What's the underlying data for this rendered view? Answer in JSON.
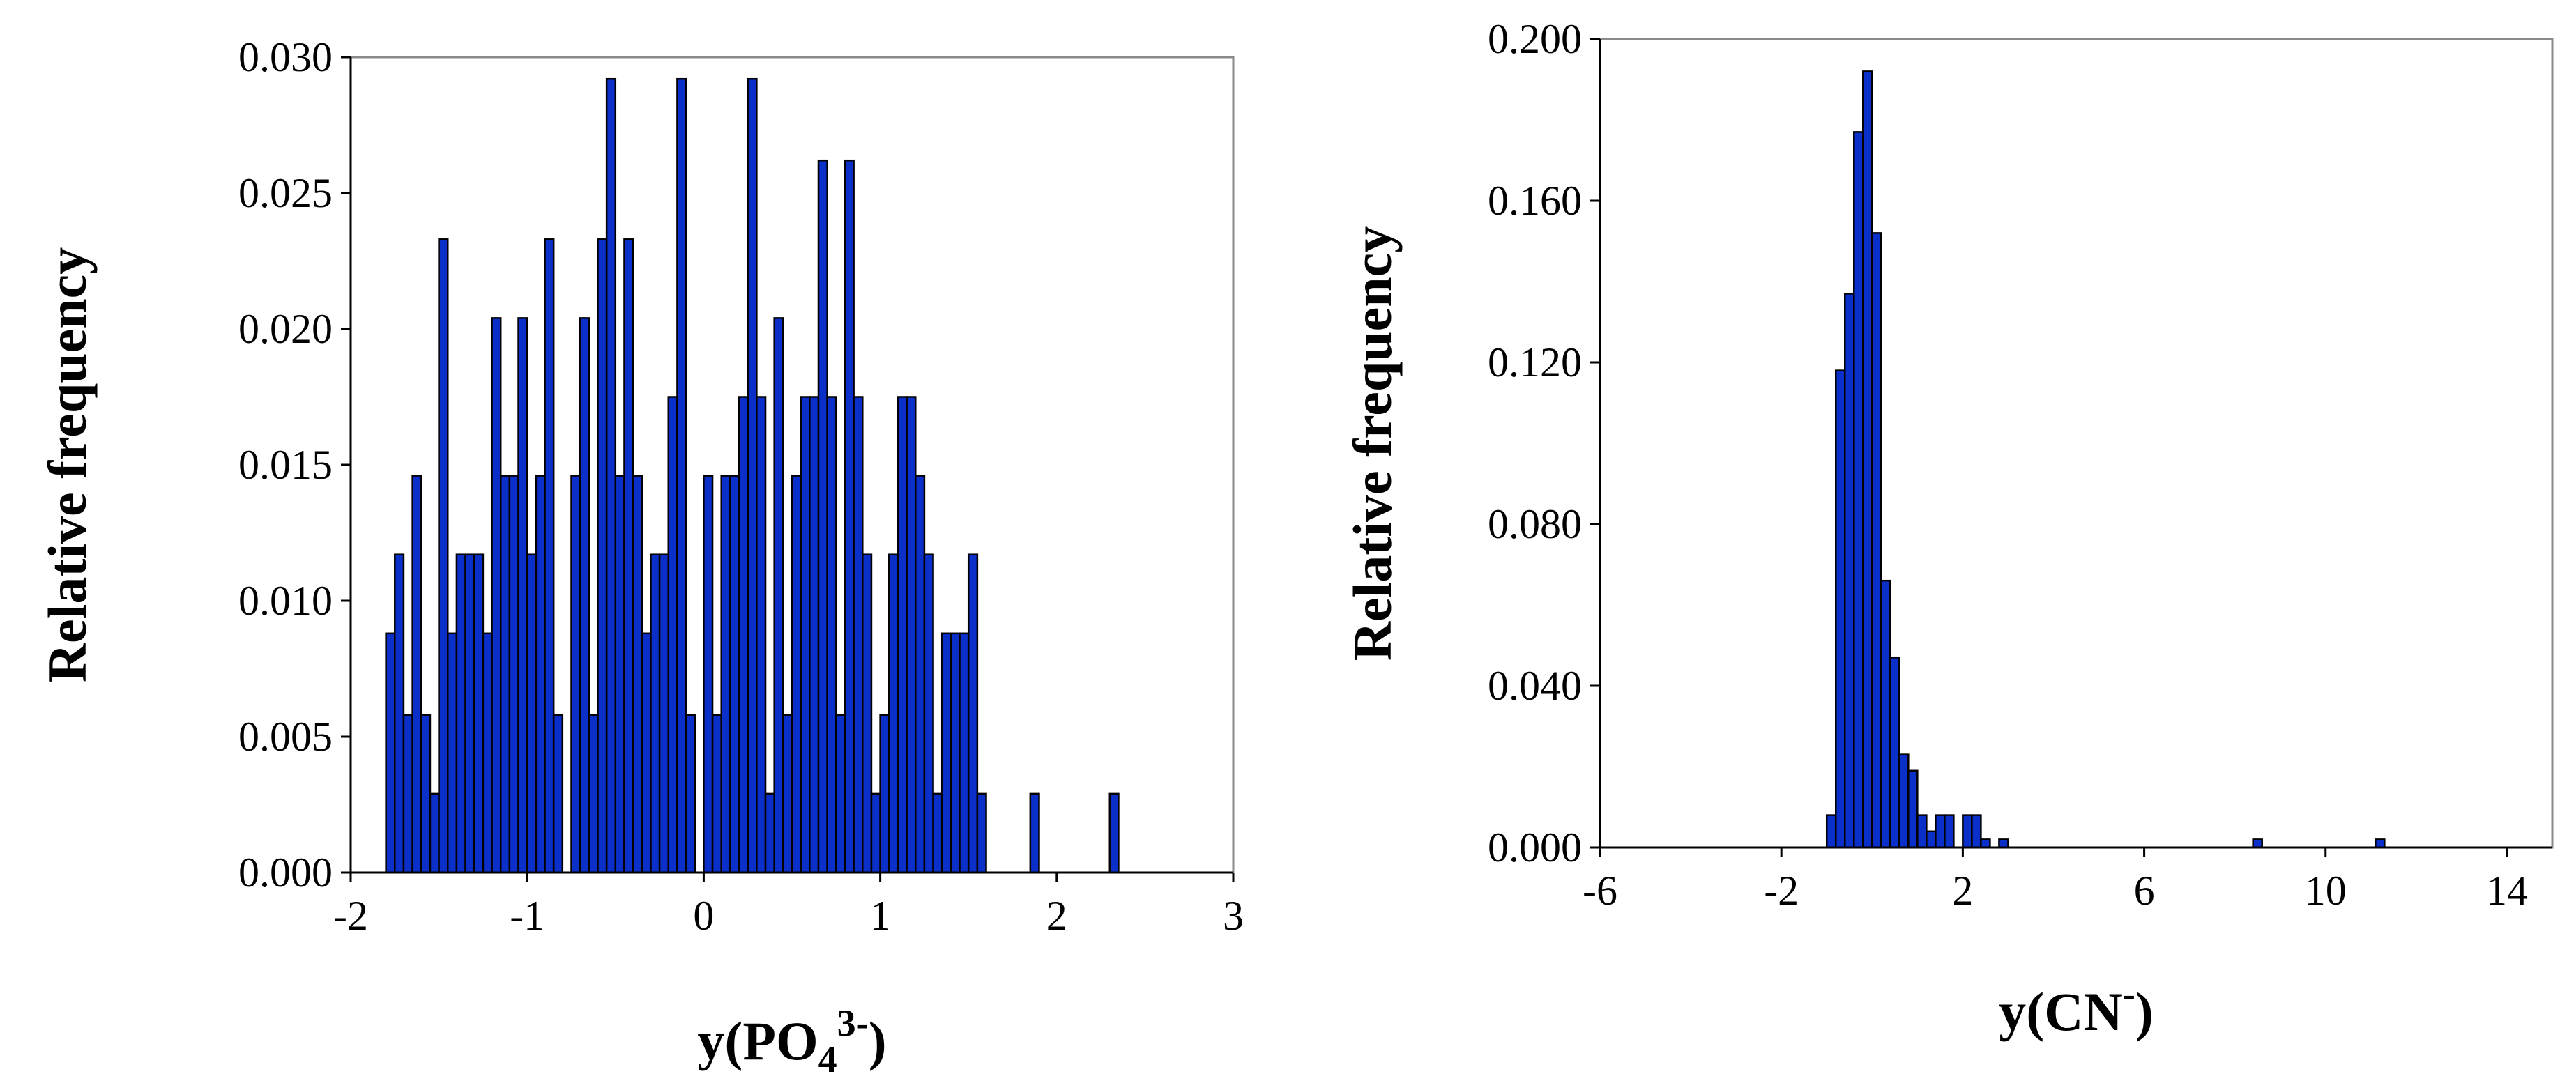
{
  "colors": {
    "bar_fill": "#0b2fc9",
    "bar_edge": "#000000",
    "frame": "#8a8a8a"
  },
  "chart_data": [
    {
      "type": "bar",
      "xlabel_main": "y(PO",
      "xlabel_sub": "4",
      "xlabel_sup": "3-",
      "xlabel_close": ")",
      "ylabel": "Relative frequency",
      "xlim": [
        -2,
        3
      ],
      "ylim": [
        0,
        0.03
      ],
      "grid": false,
      "x_ticks": [
        -2,
        -1,
        0,
        1,
        2,
        3
      ],
      "x_tick_labels": [
        "-2",
        "-1",
        "0",
        "1",
        "2",
        "3"
      ],
      "y_ticks": [
        0,
        0.005,
        0.01,
        0.015,
        0.02,
        0.025,
        0.03
      ],
      "y_tick_labels": [
        "0.000",
        "0.005",
        "0.010",
        "0.015",
        "0.020",
        "0.025",
        "0.030"
      ],
      "bin_start": -1.8,
      "bin_width": 0.05,
      "values": [
        0.0088,
        0.0117,
        0.0058,
        0.0146,
        0.0058,
        0.0029,
        0.0233,
        0.0088,
        0.0117,
        0.0117,
        0.0117,
        0.0088,
        0.0204,
        0.0146,
        0.0146,
        0.0204,
        0.0117,
        0.0146,
        0.0233,
        0.0058,
        0.0,
        0.0146,
        0.0204,
        0.0058,
        0.0233,
        0.0292,
        0.0146,
        0.0233,
        0.0146,
        0.0088,
        0.0117,
        0.0117,
        0.0175,
        0.0292,
        0.0058,
        0.0,
        0.0146,
        0.0058,
        0.0146,
        0.0146,
        0.0175,
        0.0292,
        0.0175,
        0.0029,
        0.0204,
        0.0058,
        0.0146,
        0.0175,
        0.0175,
        0.0262,
        0.0175,
        0.0058,
        0.0262,
        0.0175,
        0.0117,
        0.0029,
        0.0058,
        0.0117,
        0.0175,
        0.0175,
        0.0146,
        0.0117,
        0.0029,
        0.0088,
        0.0088,
        0.0088,
        0.0117,
        0.0029,
        0.0,
        0.0,
        0.0,
        0.0,
        0.0,
        0.0029,
        0.0,
        0.0,
        0.0,
        0.0,
        0.0,
        0.0,
        0.0,
        0.0,
        0.0029
      ]
    },
    {
      "type": "bar",
      "xlabel_main": "y(CN",
      "xlabel_sup": "-",
      "xlabel_close": ")",
      "ylabel": "Relative frequency",
      "xlim": [
        -6,
        15
      ],
      "ylim": [
        0,
        0.2
      ],
      "grid": false,
      "x_ticks": [
        -6,
        -2,
        2,
        6,
        10,
        14
      ],
      "x_tick_labels": [
        "-6",
        "-2",
        "2",
        "6",
        "10",
        "14"
      ],
      "y_ticks": [
        0,
        0.04,
        0.08,
        0.12,
        0.16,
        0.2
      ],
      "y_tick_labels": [
        "0.000",
        "0.040",
        "0.080",
        "0.120",
        "0.160",
        "0.200"
      ],
      "bin_start": -1.0,
      "bin_width": 0.2,
      "values": [
        0.008,
        0.118,
        0.137,
        0.177,
        0.192,
        0.152,
        0.066,
        0.047,
        0.023,
        0.019,
        0.008,
        0.004,
        0.008,
        0.008,
        0.0,
        0.008,
        0.008,
        0.002,
        0.0,
        0.002
      ],
      "outliers": [
        {
          "x": 8.5,
          "value": 0.002
        },
        {
          "x": 11.2,
          "value": 0.002
        }
      ]
    }
  ]
}
